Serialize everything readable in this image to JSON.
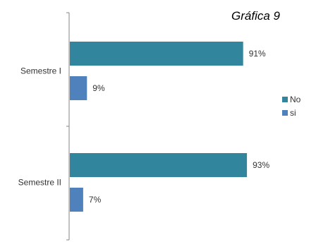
{
  "chart_data": {
    "type": "bar",
    "orientation": "horizontal",
    "title": "Gráfica 9",
    "categories": [
      "Semestre I",
      "Semestre II"
    ],
    "series": [
      {
        "name": "No",
        "values": [
          91,
          93
        ],
        "labels": [
          "91%",
          "93%"
        ],
        "color": "#31859c"
      },
      {
        "name": "si",
        "values": [
          9,
          7
        ],
        "labels": [
          "9%",
          "7%"
        ],
        "color": "#4f81bd"
      }
    ],
    "value_unit": "%",
    "xlim": [
      0,
      100
    ],
    "xlabel": "",
    "ylabel": "",
    "grid": false,
    "legend_position": "right"
  }
}
